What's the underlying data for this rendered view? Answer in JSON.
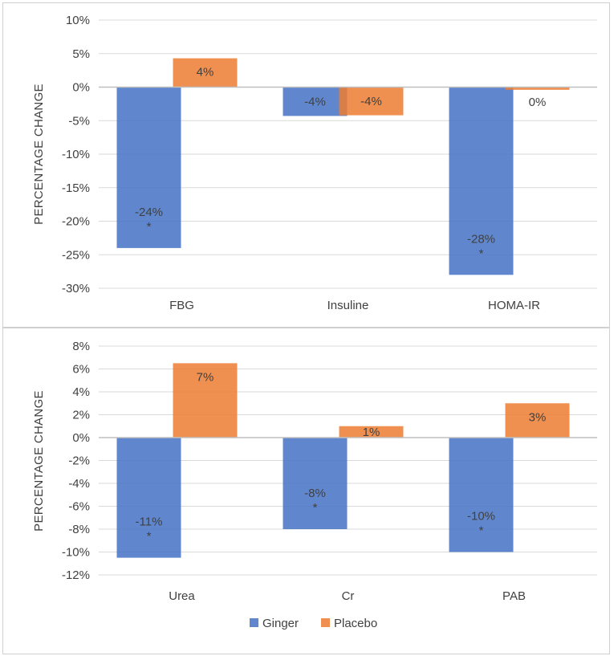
{
  "chart_data": [
    {
      "type": "bar",
      "title": "",
      "ylabel": "PERCENTAGE CHANGE",
      "xlabel": "",
      "categories": [
        "FBG",
        "Insuline",
        "HOMA-IR"
      ],
      "ylim": [
        -30,
        10
      ],
      "ytick_step": 5,
      "yticks": [
        "10%",
        "5%",
        "0%",
        "-5%",
        "-10%",
        "-15%",
        "-20%",
        "-25%",
        "-30%"
      ],
      "grid": true,
      "series": [
        {
          "name": "Ginger",
          "values": [
            -24,
            -4.3,
            -28
          ],
          "labels": [
            "-24%",
            "-4%",
            "-28%"
          ],
          "significance": [
            "*",
            "",
            "*"
          ]
        },
        {
          "name": "Placebo",
          "values": [
            4.3,
            -4.2,
            -0.4
          ],
          "labels": [
            "4%",
            "-4%",
            "0%"
          ],
          "significance": [
            "",
            "",
            ""
          ]
        }
      ]
    },
    {
      "type": "bar",
      "title": "",
      "ylabel": "PERCENTAGE CHANGE",
      "xlabel": "",
      "categories": [
        "Urea",
        "Cr",
        "PAB"
      ],
      "ylim": [
        -12,
        8
      ],
      "ytick_step": 2,
      "yticks": [
        "8%",
        "6%",
        "4%",
        "2%",
        "0%",
        "-2%",
        "-4%",
        "-6%",
        "-8%",
        "-10%",
        "-12%"
      ],
      "grid": true,
      "series": [
        {
          "name": "Ginger",
          "values": [
            -10.5,
            -8,
            -10
          ],
          "labels": [
            "-11%",
            "-8%",
            "-10%"
          ],
          "significance": [
            "*",
            "*",
            "*"
          ]
        },
        {
          "name": "Placebo",
          "values": [
            6.5,
            1,
            3
          ],
          "labels": [
            "7%",
            "1%",
            "3%"
          ],
          "significance": [
            "",
            "",
            ""
          ]
        }
      ]
    }
  ],
  "legend": {
    "position": "bottom",
    "items": [
      {
        "name": "Ginger",
        "color": "#4472c4"
      },
      {
        "name": "Placebo",
        "color": "#ed7d31"
      }
    ]
  },
  "colors": {
    "ginger": "#4472c4",
    "placebo": "#ed7d31",
    "grid": "#d9d9d9",
    "axis": "#bfbfbf",
    "text": "#404040"
  }
}
